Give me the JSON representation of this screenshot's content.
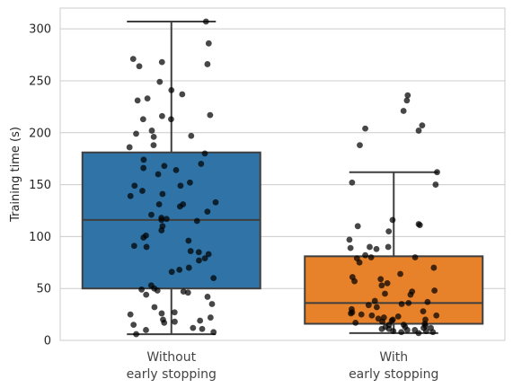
{
  "chart_data": {
    "type": "box",
    "ylabel": "Training time (s)",
    "xlabel": "",
    "ylim": [
      0,
      320
    ],
    "yticks": [
      0,
      50,
      100,
      150,
      200,
      250,
      300
    ],
    "grid": true,
    "categories": [
      {
        "line1": "Without",
        "line2": "early stopping"
      },
      {
        "line1": "With",
        "line2": "early stopping"
      }
    ],
    "colors": [
      "#2f73a7",
      "#e8822a"
    ],
    "boxes": [
      {
        "whisker_low": 6,
        "q1": 50,
        "median": 116,
        "q3": 181,
        "whisker_high": 307
      },
      {
        "whisker_low": 7,
        "q1": 16,
        "median": 36,
        "q3": 81,
        "whisker_high": 162
      }
    ],
    "points": [
      [
        307,
        286,
        271,
        268,
        266,
        264,
        249,
        241,
        237,
        233,
        231,
        217,
        216,
        213,
        213,
        202,
        199,
        197,
        196,
        188,
        186,
        180,
        174,
        170,
        168,
        166,
        164,
        160,
        152,
        149,
        149,
        144,
        141,
        139,
        133,
        131,
        131,
        129,
        124,
        121,
        118,
        117,
        116,
        115,
        110,
        106,
        101,
        99,
        96,
        91,
        90,
        86,
        85,
        83,
        79,
        77,
        70,
        68,
        66,
        60,
        53,
        50,
        49,
        48,
        47,
        46,
        44,
        42,
        35,
        32,
        27,
        26,
        25,
        22,
        20,
        19,
        18,
        17,
        15,
        12,
        11,
        10,
        8,
        6
      ],
      [
        236,
        231,
        221,
        207,
        204,
        202,
        188,
        162,
        152,
        150,
        116,
        112,
        111,
        110,
        105,
        97,
        90,
        90,
        89,
        88,
        82,
        80,
        80,
        79,
        75,
        70,
        64,
        61,
        59,
        57,
        55,
        53,
        48,
        47,
        45,
        44,
        38,
        37,
        36,
        35,
        34,
        32,
        30,
        28,
        27,
        26,
        25,
        24,
        24,
        23,
        22,
        21,
        20,
        20,
        19,
        18,
        17,
        16,
        15,
        15,
        14,
        13,
        13,
        12,
        12,
        11,
        11,
        10,
        10,
        9,
        9,
        8,
        8,
        7
      ]
    ]
  }
}
